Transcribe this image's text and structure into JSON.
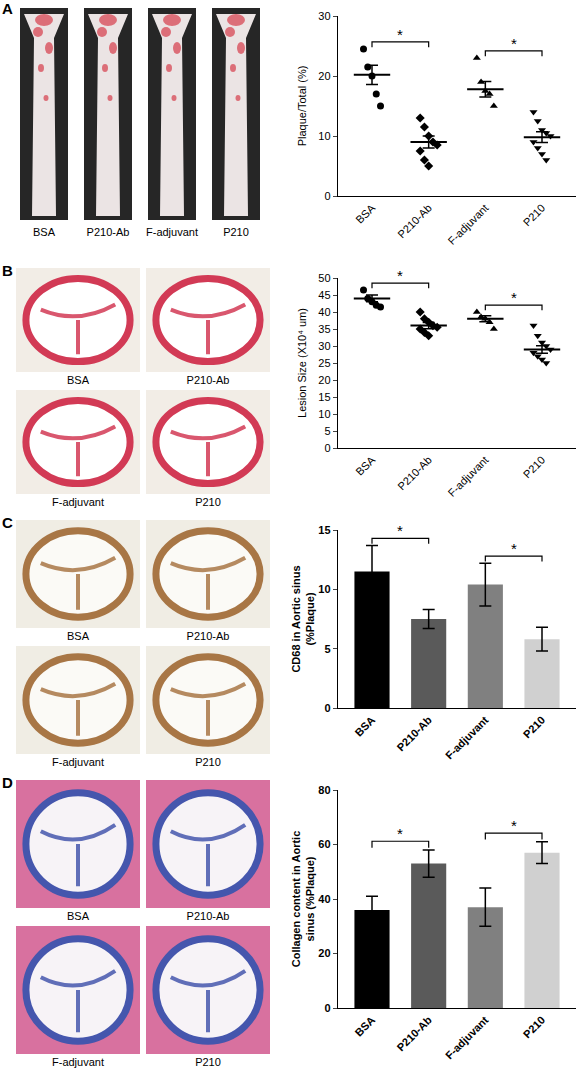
{
  "panel_labels": [
    "A",
    "B",
    "C",
    "D"
  ],
  "image_captions": [
    [
      "BSA",
      "P210-Ab",
      "F-adjuvant",
      "P210"
    ],
    [
      "BSA",
      "P210-Ab",
      "F-adjuvant",
      "P210"
    ],
    [
      "BSA",
      "P210-Ab",
      "F-adjuvant",
      "P210"
    ],
    [
      "BSA",
      "P210-Ab",
      "F-adjuvant",
      "P210"
    ]
  ],
  "chart_data": [
    {
      "type": "scatter",
      "y_label": "Plaque/Total (%)",
      "color": "#000000",
      "grid": false,
      "categories": [
        "BSA",
        "P210-Ab",
        "F-adjuvant",
        "P210"
      ],
      "groups": [
        {
          "category": "BSA",
          "marker": "circle",
          "values": [
            24.5,
            21.5,
            20,
            17,
            15
          ],
          "mean": 20.2,
          "error": 1.6
        },
        {
          "category": "P210-Ab",
          "marker": "diamond",
          "values": [
            13,
            11.5,
            10,
            9,
            8.5,
            7.5,
            6,
            5
          ],
          "mean": 9.0,
          "error": 1.0
        },
        {
          "category": "F-adjuvant",
          "marker": "triangle-up",
          "values": [
            23,
            19,
            17.5,
            17,
            15
          ],
          "mean": 17.8,
          "error": 1.3
        },
        {
          "category": "P210",
          "marker": "triangle-down",
          "values": [
            14,
            12.5,
            11,
            10.5,
            10,
            9,
            8,
            7,
            6
          ],
          "mean": 9.8,
          "error": 0.9
        }
      ],
      "ylim": [
        0,
        30
      ],
      "yticks": [
        0,
        10,
        20,
        30
      ],
      "significance": [
        {
          "pair": [
            "BSA",
            "P210-Ab"
          ],
          "label": "*"
        },
        {
          "pair": [
            "F-adjuvant",
            "P210"
          ],
          "label": "*"
        }
      ]
    },
    {
      "type": "scatter",
      "y_label": "Lesion Size (X10⁴ um)",
      "color": "#000000",
      "grid": false,
      "categories": [
        "BSA",
        "P210-Ab",
        "F-adjuvant",
        "P210"
      ],
      "groups": [
        {
          "category": "BSA",
          "marker": "circle",
          "values": [
            46.5,
            44,
            43,
            42,
            41.5
          ],
          "mean": 44,
          "error": 1.0
        },
        {
          "category": "P210-Ab",
          "marker": "diamond",
          "values": [
            40,
            38,
            37,
            36,
            35.5,
            35,
            34,
            33
          ],
          "mean": 36,
          "error": 0.9
        },
        {
          "category": "F-adjuvant",
          "marker": "triangle-up",
          "values": [
            40,
            38.5,
            38,
            37,
            35
          ],
          "mean": 38,
          "error": 0.9
        },
        {
          "category": "P210",
          "marker": "triangle-down",
          "values": [
            36,
            33,
            31,
            30,
            29,
            28,
            27,
            26,
            25
          ],
          "mean": 29,
          "error": 1.1
        }
      ],
      "ylim": [
        0,
        50
      ],
      "yticks": [
        0,
        5,
        10,
        15,
        20,
        25,
        30,
        35,
        40,
        45,
        50
      ],
      "significance": [
        {
          "pair": [
            "BSA",
            "P210-Ab"
          ],
          "label": "*"
        },
        {
          "pair": [
            "F-adjuvant",
            "P210"
          ],
          "label": "*"
        }
      ]
    },
    {
      "type": "bar",
      "y_label": "CD68 in Aortic sinus\n(%Plaque)",
      "grid": false,
      "categories": [
        "BSA",
        "P210-Ab",
        "F-adjuvant",
        "P210"
      ],
      "values": [
        11.5,
        7.5,
        10.4,
        5.8
      ],
      "errors": [
        2.2,
        0.8,
        1.8,
        1.0
      ],
      "colors": [
        "#000000",
        "#5a5a5a",
        "#808080",
        "#d0d0d0"
      ],
      "ylim": [
        0,
        15
      ],
      "yticks": [
        0,
        5,
        10,
        15
      ],
      "significance": [
        {
          "pair": [
            "BSA",
            "P210-Ab"
          ],
          "label": "*"
        },
        {
          "pair": [
            "F-adjuvant",
            "P210"
          ],
          "label": "*"
        }
      ]
    },
    {
      "type": "bar",
      "y_label": "Collagen content in Aortic\nsinus (%Plaque)",
      "grid": false,
      "categories": [
        "BSA",
        "P210-Ab",
        "F-adjuvant",
        "P210"
      ],
      "values": [
        36,
        53,
        37,
        57
      ],
      "errors": [
        5,
        5,
        7,
        4
      ],
      "colors": [
        "#000000",
        "#5a5a5a",
        "#808080",
        "#d0d0d0"
      ],
      "ylim": [
        0,
        80
      ],
      "yticks": [
        0,
        20,
        40,
        60,
        80
      ],
      "significance": [
        {
          "pair": [
            "BSA",
            "P210-Ab"
          ],
          "label": "*"
        },
        {
          "pair": [
            "F-adjuvant",
            "P210"
          ],
          "label": "*"
        }
      ]
    }
  ]
}
